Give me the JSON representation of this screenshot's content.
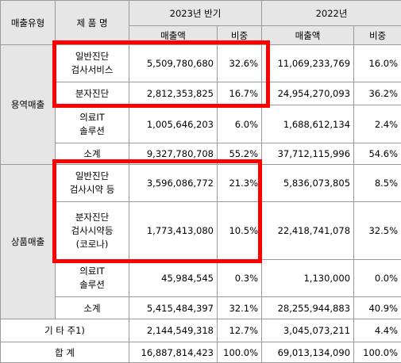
{
  "header": {
    "col_type": "매출유형",
    "col_product": "제 품 명",
    "period_1": "2023년 반기",
    "period_2": "2022년",
    "sales_label": "매출액",
    "share_label": "비중"
  },
  "groups": {
    "service": "용역매출",
    "product": "상품매출"
  },
  "rows": {
    "r1": {
      "name": [
        "일반진단",
        "검사서비스"
      ],
      "s1": "5,509,780,680",
      "p1": "32.6%",
      "s2": "11,069,233,769",
      "p2": "16.0%"
    },
    "r2": {
      "name": [
        "분자진단"
      ],
      "s1": "2,812,353,825",
      "p1": "16.7%",
      "s2": "24,954,270,093",
      "p2": "36.2%"
    },
    "r3": {
      "name": [
        "의료IT",
        "솔루션"
      ],
      "s1": "1,005,646,203",
      "p1": "6.0%",
      "s2": "1,688,612,134",
      "p2": "2.4%"
    },
    "r4": {
      "name": [
        "소계"
      ],
      "s1": "9,327,780,708",
      "p1": "55.2%",
      "s2": "37,712,115,996",
      "p2": "54.6%"
    },
    "r5": {
      "name": [
        "일반진단",
        "검사시약 등"
      ],
      "s1": "3,596,086,772",
      "p1": "21.3%",
      "s2": "5,836,073,805",
      "p2": "8.5%"
    },
    "r6": {
      "name": [
        "분자진단",
        "검사시약등",
        "(코로나)"
      ],
      "s1": "1,773,413,080",
      "p1": "10.5%",
      "s2": "22,418,741,078",
      "p2": "32.5%"
    },
    "r7": {
      "name": [
        "의료IT",
        "솔루션"
      ],
      "s1": "45,984,545",
      "p1": "0.3%",
      "s2": "1,130,000",
      "p2": "0.0%"
    },
    "r8": {
      "name": [
        "소계"
      ],
      "s1": "5,415,484,397",
      "p1": "32.1%",
      "s2": "28,255,944,883",
      "p2": "40.9%"
    },
    "r9": {
      "name": [
        "기 타 주1)"
      ],
      "s1": "2,144,549,318",
      "p1": "12.7%",
      "s2": "3,045,073,211",
      "p2": "4.4%"
    },
    "r10": {
      "name": [
        "합 계"
      ],
      "s1": "16,887,814,423",
      "p1": "100.0%",
      "s2": "69,013,134,090",
      "p2": "100.0%"
    }
  },
  "colors": {
    "header_bg": "#e6e6e6",
    "highlight": "#ff0000",
    "border": "#9a9a9a"
  }
}
